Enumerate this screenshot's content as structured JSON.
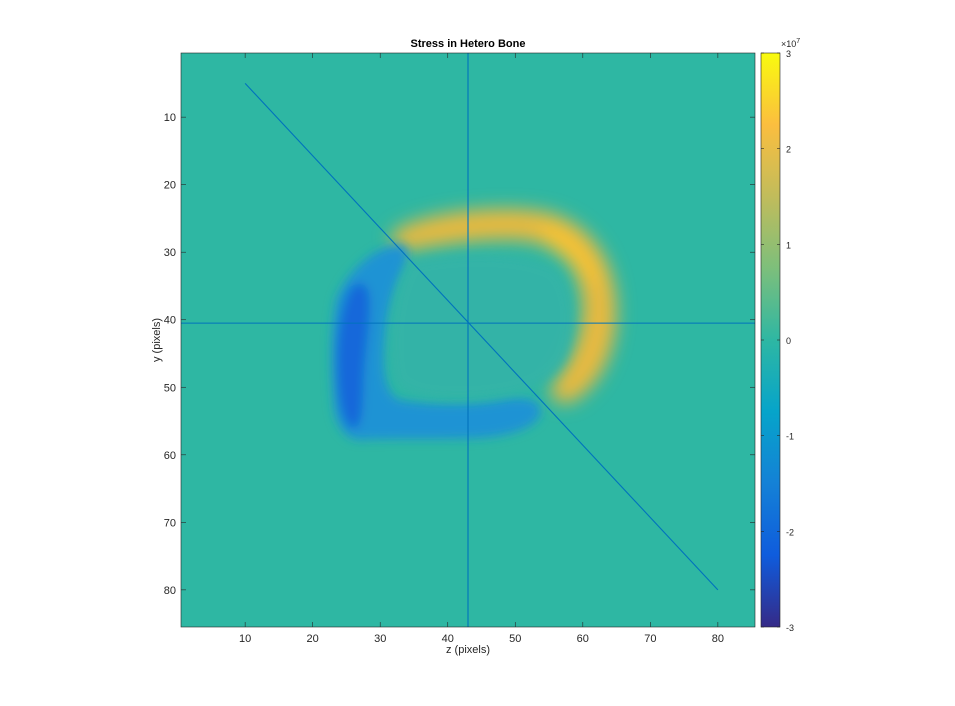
{
  "chart_data": {
    "type": "heatmap",
    "title": "Stress in Hetero Bone",
    "xlabel": "z (pixels)",
    "ylabel": "y (pixels)",
    "xlim": [
      0.5,
      85.5
    ],
    "ylim": [
      0.5,
      85.5
    ],
    "y_reversed": true,
    "xticks": [
      10,
      20,
      30,
      40,
      50,
      60,
      70,
      80
    ],
    "yticks": [
      10,
      20,
      30,
      40,
      50,
      60,
      70,
      80
    ],
    "background_value": 0,
    "colorbar": {
      "colormap": "parula",
      "clim": [
        -3,
        3
      ],
      "ticks": [
        -3,
        -2,
        -1,
        0,
        1,
        2,
        3
      ],
      "exponent_label": "×10",
      "exponent_power": "7"
    },
    "lines": [
      {
        "name": "vertical-line",
        "x": [
          43,
          43
        ],
        "y": [
          0.5,
          85.5
        ]
      },
      {
        "name": "horizontal-line",
        "x": [
          0.5,
          85.5
        ],
        "y": [
          40.5,
          40.5
        ]
      },
      {
        "name": "diagonal-line",
        "x": [
          10,
          80
        ],
        "y": [
          5,
          80
        ]
      }
    ],
    "colors": {
      "line": "#0072BD",
      "background": "#2EB7A3",
      "axes_text": "#262626"
    }
  }
}
